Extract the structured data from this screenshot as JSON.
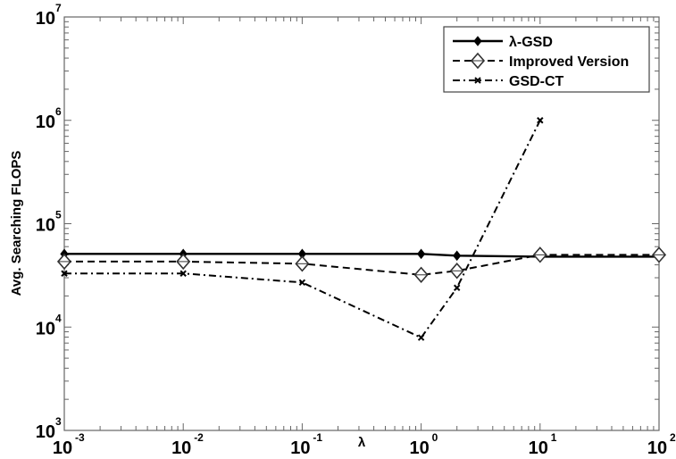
{
  "chart_data": {
    "type": "line",
    "title": "",
    "xlabel": "λ",
    "ylabel": "Avg. Searching FLOPS",
    "xscale": "log",
    "yscale": "log",
    "xlim": [
      0.001,
      100
    ],
    "ylim": [
      1000,
      10000000
    ],
    "grid": false,
    "legend_position": "upper right",
    "x_ticks": [
      {
        "base": "10",
        "exp": "-3",
        "value": 0.001
      },
      {
        "base": "10",
        "exp": "-2",
        "value": 0.01
      },
      {
        "base": "10",
        "exp": "-1",
        "value": 0.1
      },
      {
        "base": "10",
        "exp": "0",
        "value": 1
      },
      {
        "base": "10",
        "exp": "1",
        "value": 10
      },
      {
        "base": "10",
        "exp": "2",
        "value": 100
      }
    ],
    "y_ticks": [
      {
        "base": "10",
        "exp": "3",
        "value": 1000
      },
      {
        "base": "10",
        "exp": "4",
        "value": 10000
      },
      {
        "base": "10",
        "exp": "5",
        "value": 100000
      },
      {
        "base": "10",
        "exp": "6",
        "value": 1000000
      },
      {
        "base": "10",
        "exp": "7",
        "value": 10000000
      }
    ],
    "series": [
      {
        "name": "λ-GSD",
        "style": "solid",
        "marker": "filled-diamond",
        "x": [
          0.001,
          0.01,
          0.1,
          1,
          2,
          10,
          100
        ],
        "values": [
          51000,
          51000,
          51000,
          51000,
          49000,
          48000,
          48000
        ]
      },
      {
        "name": "Improved Version",
        "style": "dashed",
        "marker": "open-diamond",
        "x": [
          0.001,
          0.01,
          0.1,
          1,
          2,
          10,
          100
        ],
        "values": [
          43000,
          43000,
          41000,
          32000,
          35000,
          50000,
          50000
        ]
      },
      {
        "name": "GSD-CT",
        "style": "dash-dot",
        "marker": "x",
        "x": [
          0.001,
          0.01,
          0.1,
          1,
          2,
          10
        ],
        "values": [
          33000,
          33000,
          27000,
          7900,
          24000,
          1000000
        ]
      }
    ]
  },
  "colors": {
    "axis": "#666666",
    "series": "#000000",
    "background": "#ffffff"
  }
}
